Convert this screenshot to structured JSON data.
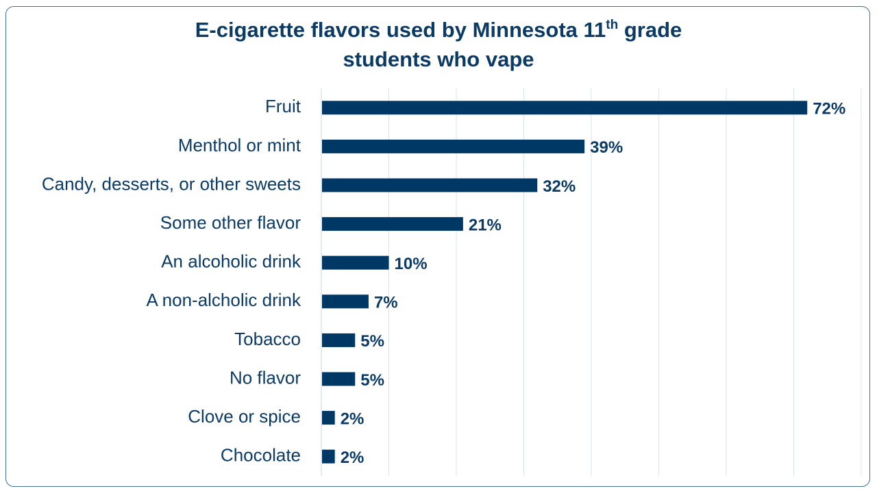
{
  "title": {
    "line1_before": "E-cigarette flavors used by Minnesota 11",
    "line1_sup": "th",
    "line1_after": " grade",
    "line2": "students who vape"
  },
  "colors": {
    "bar": "#003865",
    "text": "#0b3a64",
    "grid": "#d6e4f0",
    "frame": "#3f6f93"
  },
  "chart_data": {
    "type": "bar",
    "orientation": "horizontal",
    "title": "E-cigarette flavors used by Minnesota 11th grade students who vape",
    "categories": [
      "Fruit",
      "Menthol or mint",
      "Candy, desserts, or other sweets",
      "Some other flavor",
      "An alcoholic drink",
      "A non-alcholic drink",
      "Tobacco",
      "No flavor",
      "Clove or spice",
      "Chocolate"
    ],
    "values": [
      72,
      39,
      32,
      21,
      10,
      7,
      5,
      5,
      2,
      2
    ],
    "value_labels": [
      "72%",
      "39%",
      "32%",
      "21%",
      "10%",
      "7%",
      "5%",
      "5%",
      "2%",
      "2%"
    ],
    "xlim": [
      0,
      80
    ],
    "grid": true,
    "legend": false
  }
}
